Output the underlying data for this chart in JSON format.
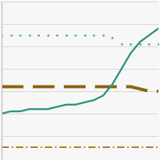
{
  "x": [
    0,
    1,
    2,
    3,
    4,
    5,
    6,
    7,
    8,
    9,
    10,
    11,
    12,
    13,
    14,
    15,
    16,
    17
  ],
  "line1_y": [
    55,
    55,
    55,
    55,
    55,
    55,
    55,
    55,
    55,
    55,
    55,
    55,
    54,
    51,
    51,
    51,
    51,
    51
  ],
  "line2_y": [
    32,
    32,
    32,
    32,
    32,
    32,
    32,
    32,
    32,
    32,
    32,
    32,
    32,
    32,
    32,
    31,
    30,
    30
  ],
  "line3_y": [
    20,
    21,
    21,
    22,
    22,
    22,
    23,
    24,
    24,
    25,
    26,
    28,
    33,
    40,
    47,
    52,
    55,
    58
  ],
  "line4_y": [
    5,
    5,
    5,
    5,
    5,
    5,
    5,
    5,
    5,
    5,
    5,
    5,
    5,
    5,
    5,
    5,
    5,
    5
  ],
  "line1_color": "#5aada0",
  "line2_color": "#8b6410",
  "line3_color": "#2a9080",
  "line4_color": "#a07a10",
  "bg_color": "#f7f7f7",
  "grid_color": "#d8d8d8",
  "ylim": [
    0,
    70
  ],
  "xlim": [
    0,
    17
  ]
}
